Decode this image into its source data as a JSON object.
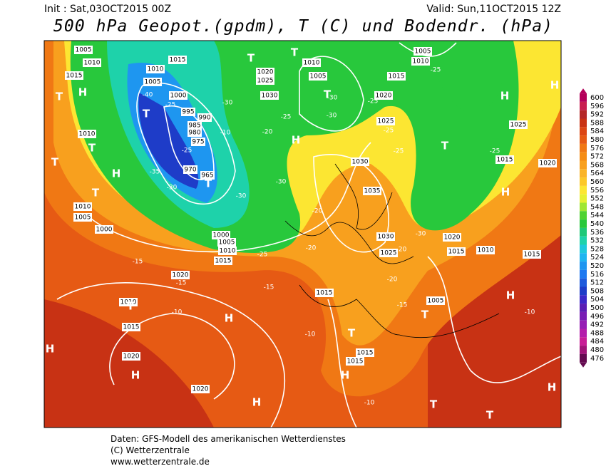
{
  "header": {
    "init": "Init : Sat,03OCT2015 00Z",
    "valid": "Valid: Sun,11OCT2015 12Z",
    "title": "500 hPa Geopot.(gpdm), T (C) und Bodendr. (hPa)"
  },
  "colorbar": {
    "levels": [
      "600",
      "596",
      "592",
      "588",
      "584",
      "580",
      "576",
      "572",
      "568",
      "564",
      "560",
      "556",
      "552",
      "548",
      "544",
      "540",
      "536",
      "532",
      "528",
      "524",
      "520",
      "516",
      "512",
      "508",
      "504",
      "500",
      "496",
      "492",
      "488",
      "484",
      "480",
      "476"
    ],
    "colors": [
      "#b4005a",
      "#c81e50",
      "#b42828",
      "#c83214",
      "#dc4614",
      "#e65a14",
      "#f07814",
      "#f58c14",
      "#f8a01e",
      "#fab428",
      "#fcc828",
      "#fce632",
      "#e6f032",
      "#a0e632",
      "#50d232",
      "#28c83c",
      "#1ec878",
      "#1ed2aa",
      "#1ec8dc",
      "#1eb4f0",
      "#1e96f0",
      "#1e78f0",
      "#1e5adc",
      "#1e3cc8",
      "#3c28c8",
      "#5a1eb4",
      "#781eb4",
      "#961eb4",
      "#b41eaa",
      "#c81e96",
      "#a01478",
      "#640a50"
    ]
  },
  "isobar_labels": [
    "1005",
    "1010",
    "1015",
    "1015",
    "1010",
    "1005",
    "1000",
    "995",
    "990",
    "985",
    "980",
    "975",
    "970",
    "965",
    "1020",
    "1025",
    "1030",
    "1010",
    "1005",
    "1005",
    "1010",
    "1015",
    "1020",
    "1025",
    "1030",
    "1035",
    "1030",
    "1025",
    "1020",
    "1015",
    "1010",
    "1015",
    "1025",
    "1015",
    "1020",
    "1010",
    "1010",
    "1005",
    "1000",
    "1000",
    "1005",
    "1010",
    "1015",
    "1020",
    "1015",
    "1005",
    "1010",
    "1015",
    "1020",
    "1020",
    "1015",
    "1015"
  ],
  "temp_labels": [
    "-40",
    "-25",
    "-30",
    "-10",
    "-25",
    "-35",
    "-30",
    "-30",
    "-30",
    "-20",
    "-25",
    "-30",
    "-30",
    "-25",
    "-25",
    "-25",
    "-25",
    "-25",
    "-20",
    "-20",
    "-25",
    "-15",
    "-15",
    "-15",
    "-10",
    "-15",
    "-10",
    "-20",
    "-10",
    "-10",
    "-30",
    "-20"
  ],
  "pressure_centers": [
    "T",
    "H",
    "T",
    "H",
    "T",
    "T",
    "T",
    "T",
    "T",
    "T",
    "T",
    "H",
    "T",
    "H",
    "H",
    "H",
    "T",
    "H",
    "H",
    "H",
    "T",
    "H",
    "T",
    "H",
    "H",
    "T",
    "T",
    "H"
  ],
  "footer": [
    "Daten: GFS-Modell des amerikanischen Wetterdienstes",
    "(C) Wetterzentrale",
    "www.wetterzentrale.de"
  ]
}
